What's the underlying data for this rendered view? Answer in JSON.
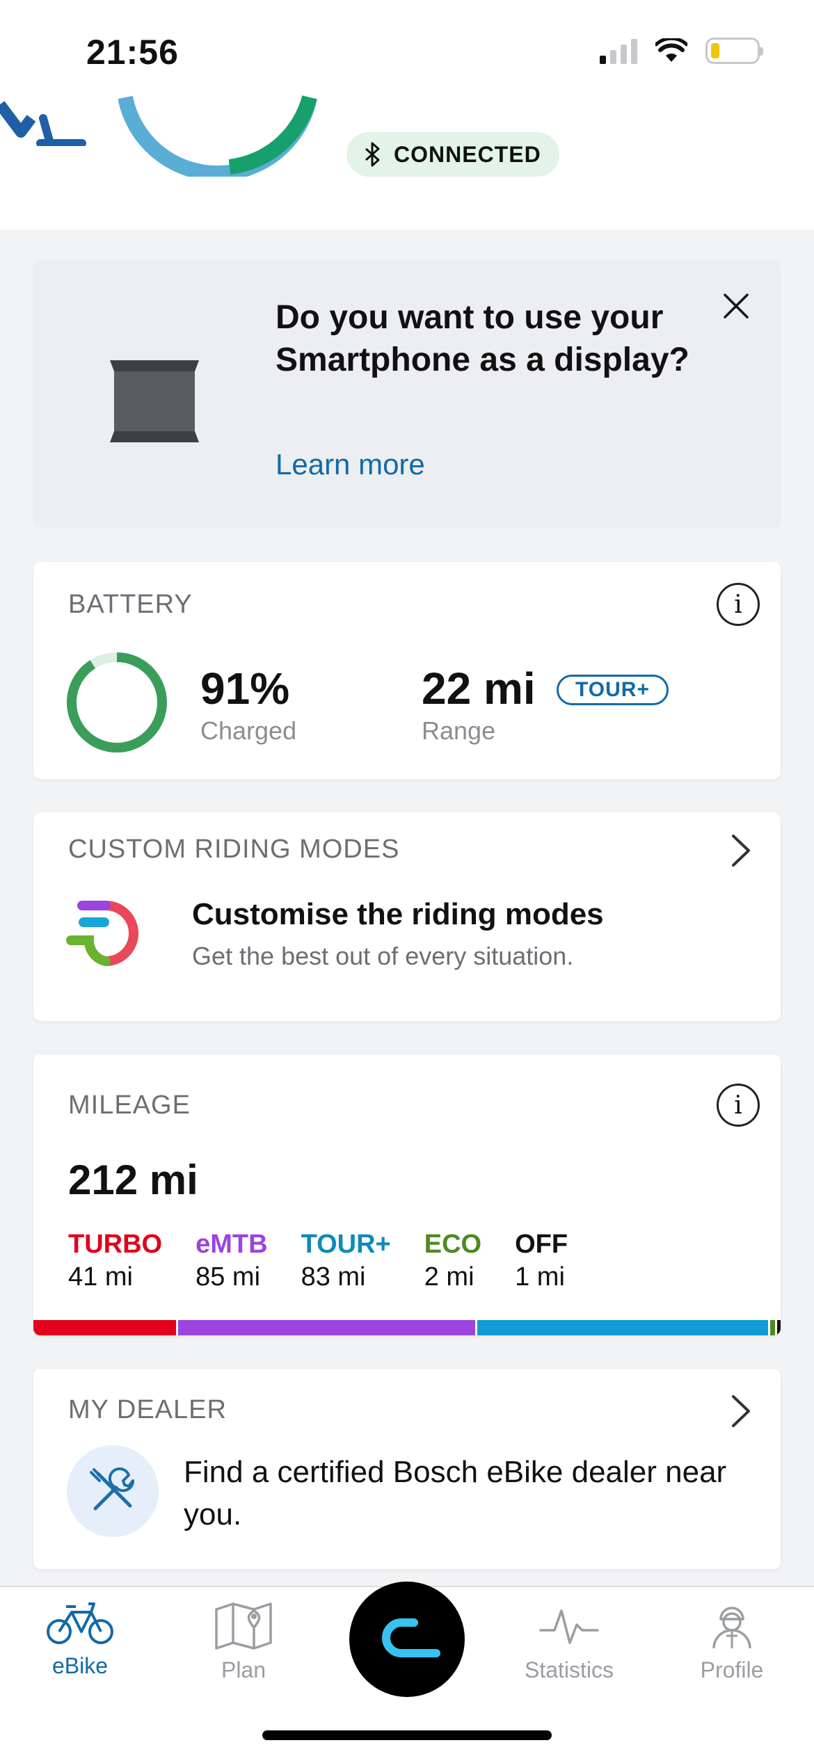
{
  "status_bar": {
    "time": "21:56"
  },
  "header": {
    "connection_status": "CONNECTED"
  },
  "promo": {
    "title": "Do you want to use your Smartphone as a display?",
    "link": "Learn more"
  },
  "battery": {
    "title": "BATTERY",
    "percent": "91%",
    "percent_label": "Charged",
    "percent_value": 0.91,
    "range": "22 mi",
    "range_label": "Range",
    "mode_badge": "TOUR+"
  },
  "custom_modes": {
    "title": "CUSTOM RIDING MODES",
    "heading": "Customise the riding modes",
    "subtitle": "Get the best out of every situation."
  },
  "mileage": {
    "title": "MILEAGE",
    "total": "212 mi",
    "modes": [
      {
        "name": "TURBO",
        "distance": "41 mi",
        "color": "#e2001a",
        "value": 41
      },
      {
        "name": "eMTB",
        "distance": "85 mi",
        "color": "#9b44e0",
        "value": 85
      },
      {
        "name": "TOUR+",
        "distance": "83 mi",
        "color": "#109ad6",
        "value": 83
      },
      {
        "name": "ECO",
        "distance": "2 mi",
        "color": "#4e8a1f",
        "value": 2
      },
      {
        "name": "OFF",
        "distance": "1 mi",
        "color": "#111111",
        "value": 1
      }
    ]
  },
  "dealer": {
    "title": "MY DEALER",
    "text": "Find a certified Bosch eBike dealer near you."
  },
  "nav": {
    "items": [
      {
        "label": "eBike",
        "icon": "bike-icon",
        "active": true
      },
      {
        "label": "Plan",
        "icon": "map-icon",
        "active": false
      },
      {
        "label": "Statistics",
        "icon": "activity-icon",
        "active": false
      },
      {
        "label": "Profile",
        "icon": "profile-icon",
        "active": false
      }
    ]
  },
  "colors": {
    "accent": "#106aa8",
    "battery_green": "#3a9e5a",
    "connected_bg": "#e2f4e8"
  }
}
